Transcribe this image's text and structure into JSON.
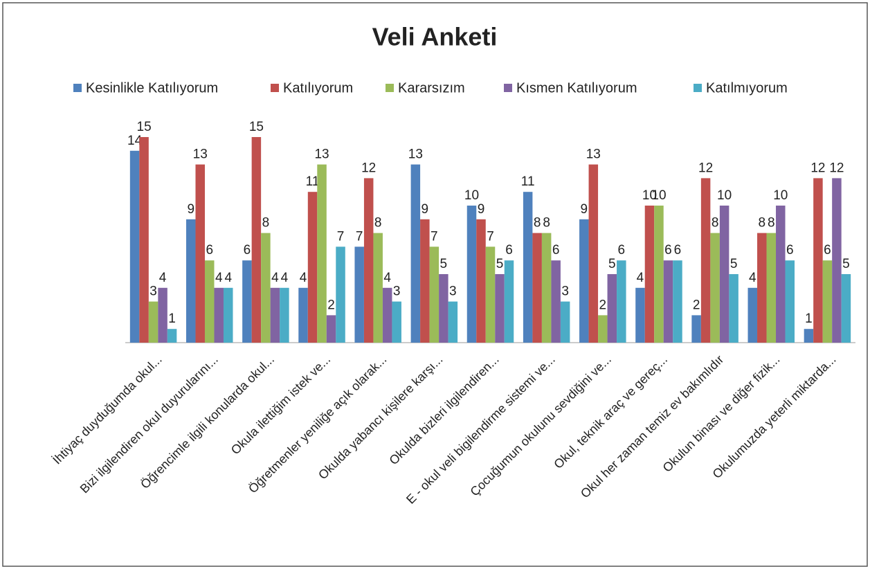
{
  "chart_data": {
    "type": "bar",
    "title": "Veli Anketi",
    "categories": [
      "İhtiyaç duyduğumda okul...",
      "Bizi ilgilendiren okul duyurularını...",
      "Öğrencimle ilgili konularda okul...",
      "Okula ilettiğim istek ve...",
      "Öğretmenler yeniliğe açık olarak...",
      "Okulda yabancı kişilere karşı...",
      "Okulda bizleri ilgilendiren...",
      "E - okul veli bigilendirme sistemi ve...",
      "Çocuğumun okulunu sevdiğini ve...",
      "Okul, teknik araç ve gereç...",
      "Okul her zaman temiz ev bakımlıdır",
      "Okulun binası ve diğer fizik...",
      "Okulumuzda yeterli miktarda..."
    ],
    "series": [
      {
        "name": "Kesinlikle Katılıyorum",
        "color": "#4f81bd",
        "values": [
          14,
          9,
          6,
          4,
          7,
          13,
          10,
          11,
          9,
          4,
          2,
          4,
          1
        ]
      },
      {
        "name": "Katılıyorum",
        "color": "#c0504d",
        "values": [
          15,
          13,
          15,
          11,
          12,
          9,
          9,
          8,
          13,
          10,
          12,
          8,
          12
        ]
      },
      {
        "name": "Kararsızım",
        "color": "#9bbb59",
        "values": [
          3,
          6,
          8,
          13,
          8,
          7,
          7,
          8,
          2,
          10,
          8,
          8,
          6
        ]
      },
      {
        "name": "Kısmen Katılıyorum",
        "color": "#8064a2",
        "values": [
          4,
          4,
          4,
          2,
          4,
          5,
          5,
          6,
          5,
          6,
          10,
          10,
          12
        ]
      },
      {
        "name": "Katılmıyorum",
        "color": "#4bacc6",
        "values": [
          1,
          4,
          4,
          7,
          3,
          3,
          6,
          3,
          6,
          6,
          5,
          6,
          5
        ]
      }
    ],
    "ylim": [
      0,
      15
    ],
    "legend": "top"
  }
}
